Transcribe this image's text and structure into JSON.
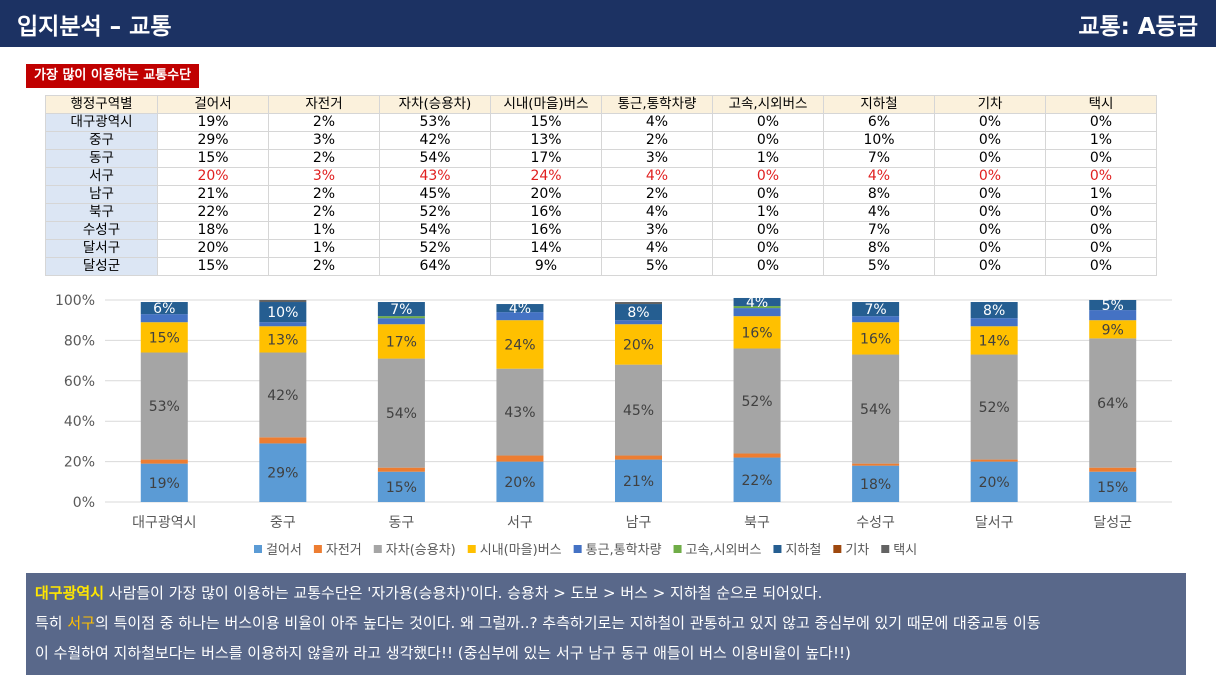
{
  "header": {
    "title": "입지분석 – 교통",
    "grade": "교통: A등급"
  },
  "section_label": "가장 많이 이용하는 교통수단",
  "table": {
    "corner": "행정구역별",
    "columns": [
      "걸어서",
      "자전거",
      "자차(승용차)",
      "시내(마을)버스",
      "통근,통학차량",
      "고속,시외버스",
      "지하철",
      "기차",
      "택시"
    ],
    "rows": [
      {
        "name": "대구광역시",
        "values": [
          "19%",
          "2%",
          "53%",
          "15%",
          "4%",
          "0%",
          "6%",
          "0%",
          "0%"
        ]
      },
      {
        "name": "중구",
        "values": [
          "29%",
          "3%",
          "42%",
          "13%",
          "2%",
          "0%",
          "10%",
          "0%",
          "1%"
        ]
      },
      {
        "name": "동구",
        "values": [
          "15%",
          "2%",
          "54%",
          "17%",
          "3%",
          "1%",
          "7%",
          "0%",
          "0%"
        ]
      },
      {
        "name": "서구",
        "values": [
          "20%",
          "3%",
          "43%",
          "24%",
          "4%",
          "0%",
          "4%",
          "0%",
          "0%"
        ],
        "highlight": true
      },
      {
        "name": "남구",
        "values": [
          "21%",
          "2%",
          "45%",
          "20%",
          "2%",
          "0%",
          "8%",
          "0%",
          "1%"
        ]
      },
      {
        "name": "북구",
        "values": [
          "22%",
          "2%",
          "52%",
          "16%",
          "4%",
          "1%",
          "4%",
          "0%",
          "0%"
        ]
      },
      {
        "name": "수성구",
        "values": [
          "18%",
          "1%",
          "54%",
          "16%",
          "3%",
          "0%",
          "7%",
          "0%",
          "0%"
        ]
      },
      {
        "name": "달서구",
        "values": [
          "20%",
          "1%",
          "52%",
          "14%",
          "4%",
          "0%",
          "8%",
          "0%",
          "0%"
        ]
      },
      {
        "name": "달성군",
        "values": [
          "15%",
          "2%",
          "64%",
          "9%",
          "5%",
          "0%",
          "5%",
          "0%",
          "0%"
        ]
      }
    ]
  },
  "chart_data": {
    "type": "bar",
    "stacked": true,
    "percent": true,
    "categories": [
      "대구광역시",
      "중구",
      "동구",
      "서구",
      "남구",
      "북구",
      "수성구",
      "달서구",
      "달성군"
    ],
    "ylim": [
      0,
      100
    ],
    "yticks": [
      "0%",
      "20%",
      "40%",
      "60%",
      "80%",
      "100%"
    ],
    "legend_position": "bottom",
    "grid": true,
    "series": [
      {
        "name": "걸어서",
        "color": "#5b9bd5",
        "values": [
          19,
          29,
          15,
          20,
          21,
          22,
          18,
          20,
          15
        ],
        "labeled": true
      },
      {
        "name": "자전거",
        "color": "#ed7d31",
        "values": [
          2,
          3,
          2,
          3,
          2,
          2,
          1,
          1,
          2
        ],
        "labeled": false
      },
      {
        "name": "자차(승용차)",
        "color": "#a5a5a5",
        "values": [
          53,
          42,
          54,
          43,
          45,
          52,
          54,
          52,
          64
        ],
        "labeled": true
      },
      {
        "name": "시내(마을)버스",
        "color": "#ffc000",
        "values": [
          15,
          13,
          17,
          24,
          20,
          16,
          16,
          14,
          9
        ],
        "labeled": true
      },
      {
        "name": "통근,통학차량",
        "color": "#4472c4",
        "values": [
          4,
          2,
          3,
          4,
          2,
          4,
          3,
          4,
          5
        ],
        "labeled": false
      },
      {
        "name": "고속,시외버스",
        "color": "#70ad47",
        "values": [
          0,
          0,
          1,
          0,
          0,
          1,
          0,
          0,
          0
        ],
        "labeled": false
      },
      {
        "name": "지하철",
        "color": "#255e91",
        "values": [
          6,
          10,
          7,
          4,
          8,
          4,
          7,
          8,
          5
        ],
        "labeled": true
      },
      {
        "name": "기차",
        "color": "#9e480e",
        "values": [
          0,
          0,
          0,
          0,
          0,
          0,
          0,
          0,
          0
        ],
        "labeled": false
      },
      {
        "name": "택시",
        "color": "#636363",
        "values": [
          0,
          1,
          0,
          0,
          1,
          0,
          0,
          0,
          0
        ],
        "labeled": false
      }
    ]
  },
  "footnote": {
    "line1_highlight": "대구광역시",
    "line1_rest": " 사람들이 가장 많이 이용하는 교통수단은 '자가용(승용차)'이다. 승용차 > 도보 > 버스 > 지하철 순으로 되어있다.",
    "line2_pre": "특히 ",
    "line2_highlight": "서구",
    "line2_rest": "의 특이점 중 하나는 버스이용 비율이 아주 높다는 것이다. 왜 그럴까..? 추측하기로는 지하철이 관통하고 있지 않고 중심부에 있기 때문에 대중교통 이동",
    "line3": "이 수월하여 지하철보다는 버스를 이용하지 않을까 라고 생각했다!! (중심부에 있는 서구 남구 동구 애들이 버스 이용비율이 높다!!)"
  }
}
